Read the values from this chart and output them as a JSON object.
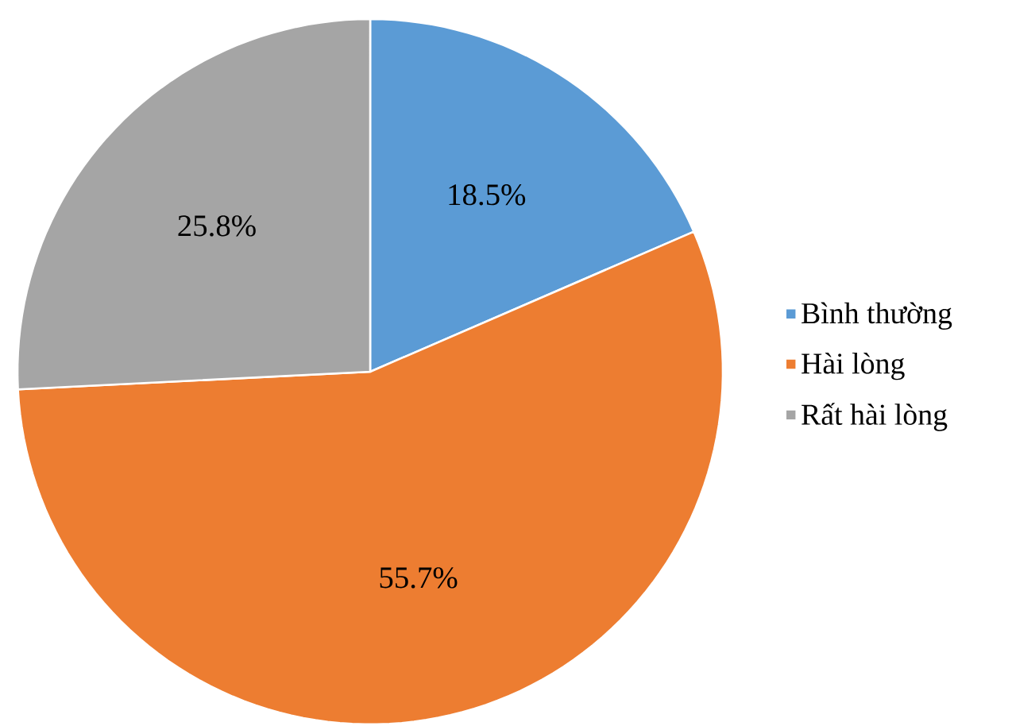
{
  "chart_data": {
    "type": "pie",
    "categories": [
      "Bình thường",
      "Hài lòng",
      "Rất hài lòng"
    ],
    "values": [
      18.5,
      55.7,
      25.8
    ],
    "colors": [
      "#5b9bd5",
      "#ed7d31",
      "#a5a5a5"
    ],
    "value_labels": [
      "18.5%",
      "55.7%",
      "25.8%"
    ],
    "legend": "right"
  }
}
